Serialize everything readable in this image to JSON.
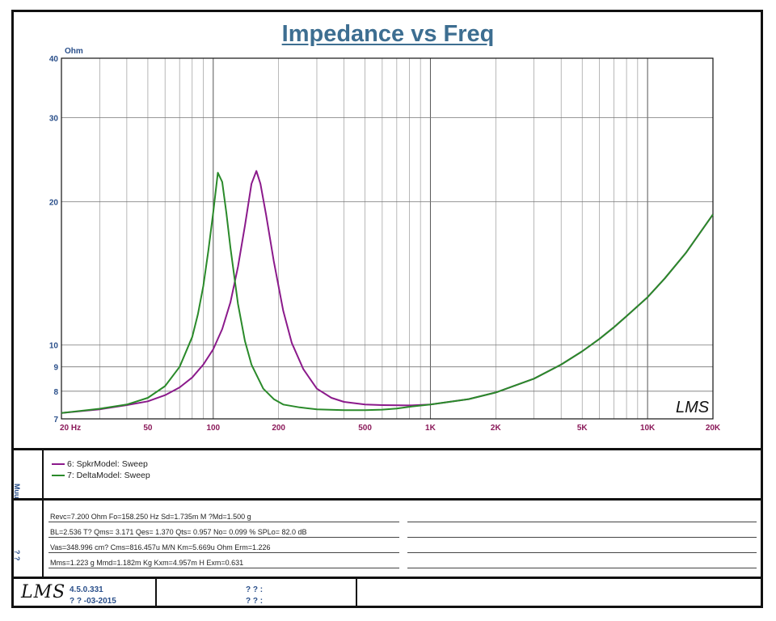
{
  "chart_data": {
    "type": "line",
    "title": "Impedance vs Freq",
    "ylabel": "Ohm",
    "xscale": "log",
    "yscale": "log",
    "xlim": [
      20,
      20000
    ],
    "ylim": [
      7,
      40
    ],
    "x_ticks": [
      {
        "v": 20,
        "label": "20  Hz"
      },
      {
        "v": 50,
        "label": "50"
      },
      {
        "v": 100,
        "label": "100"
      },
      {
        "v": 200,
        "label": "200"
      },
      {
        "v": 500,
        "label": "500"
      },
      {
        "v": 1000,
        "label": "1K"
      },
      {
        "v": 2000,
        "label": "2K"
      },
      {
        "v": 5000,
        "label": "5K"
      },
      {
        "v": 10000,
        "label": "10K"
      },
      {
        "v": 20000,
        "label": "20K"
      }
    ],
    "y_ticks": [
      {
        "v": 40,
        "label": "40"
      },
      {
        "v": 30,
        "label": "30"
      },
      {
        "v": 20,
        "label": "20"
      },
      {
        "v": 10,
        "label": "10"
      },
      {
        "v": 9,
        "label": "9"
      },
      {
        "v": 8,
        "label": "8"
      },
      {
        "v": 7,
        "label": "7"
      }
    ],
    "grid": true,
    "series": [
      {
        "name": "6: SpkrModel: Sweep",
        "color": "#8b1a8b",
        "x": [
          20,
          30,
          40,
          50,
          60,
          70,
          80,
          90,
          100,
          110,
          120,
          130,
          140,
          150,
          158,
          165,
          175,
          190,
          210,
          230,
          260,
          300,
          350,
          400,
          500,
          600,
          800,
          1000,
          1500,
          2000,
          3000,
          4000,
          5000,
          6000,
          7000,
          8000,
          10000,
          12000,
          15000,
          20000
        ],
        "y": [
          7.2,
          7.33,
          7.48,
          7.62,
          7.85,
          8.15,
          8.55,
          9.1,
          9.8,
          10.8,
          12.3,
          14.6,
          17.8,
          21.8,
          23.2,
          21.8,
          18.8,
          15.0,
          11.8,
          10.1,
          8.9,
          8.1,
          7.75,
          7.6,
          7.5,
          7.48,
          7.47,
          7.5,
          7.7,
          7.95,
          8.5,
          9.1,
          9.7,
          10.3,
          10.9,
          11.5,
          12.6,
          13.8,
          15.6,
          18.8
        ]
      },
      {
        "name": "7: DeltaModel: Sweep",
        "color": "#2a8a2a",
        "x": [
          20,
          30,
          40,
          50,
          60,
          70,
          80,
          85,
          90,
          95,
          100,
          105,
          110,
          115,
          120,
          130,
          140,
          150,
          170,
          190,
          210,
          250,
          300,
          400,
          500,
          600,
          700,
          800,
          1000,
          1500,
          2000,
          3000,
          4000,
          5000,
          6000,
          7000,
          8000,
          10000,
          12000,
          15000,
          20000
        ],
        "y": [
          7.2,
          7.35,
          7.5,
          7.75,
          8.2,
          9.0,
          10.4,
          11.6,
          13.3,
          15.8,
          19.0,
          23.0,
          22.0,
          18.9,
          16.0,
          12.2,
          10.2,
          9.1,
          8.1,
          7.7,
          7.5,
          7.4,
          7.33,
          7.3,
          7.3,
          7.32,
          7.36,
          7.42,
          7.5,
          7.7,
          7.95,
          8.5,
          9.1,
          9.7,
          10.3,
          10.9,
          11.5,
          12.6,
          13.8,
          15.6,
          18.8
        ]
      }
    ]
  },
  "watermark_logo": "LMS",
  "side_labels": {
    "legend": "Muu",
    "params": "? ?"
  },
  "params": {
    "line1": "Revc=7.200 Ohm  Fo=158.250 Hz  Sd=1.735m M ?Md=1.500 g",
    "line2": "BL=2.536 T?   Qms= 3.171  Qes= 1.370  Qts= 0.957  No= 0.099 %   SPLo= 82.0 dB",
    "line3": "Vas=348.996 cm? Cms=816.457u M/N  Km=5.669u Ohm  Erm=1.226",
    "line4": "Mms=1.223 g  Mmd=1.182m Kg  Kxm=4.957m H  Exm=0.631"
  },
  "footer": {
    "logo": "LMS",
    "version": "4.5.0.331",
    "date": "? ? -03-2015",
    "field1": "? ? :",
    "field2": "? ? :"
  }
}
